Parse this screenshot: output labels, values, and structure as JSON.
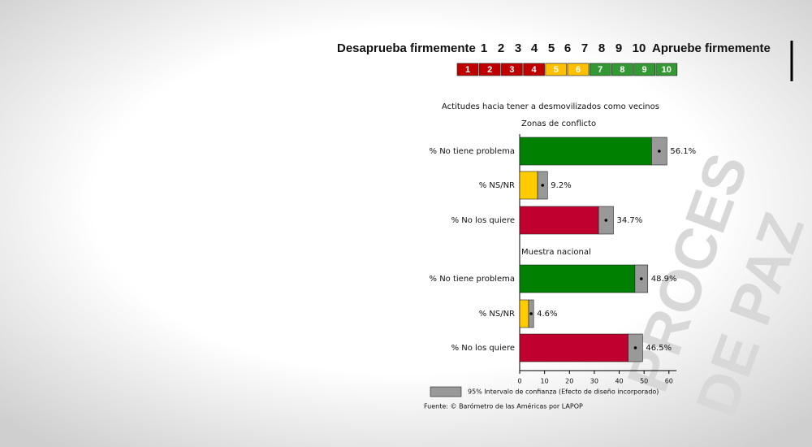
{
  "chart_data": {
    "type": "bar",
    "orientation": "horizontal",
    "title": "Actitudes hacia tener a desmovilizados como vecinos",
    "scale": {
      "left_label": "Desaprueba firmemente",
      "right_label": "Apruebe firmemente",
      "steps": [
        {
          "label": "1",
          "color": "#c00000"
        },
        {
          "label": "2",
          "color": "#c00000"
        },
        {
          "label": "3",
          "color": "#c00000"
        },
        {
          "label": "4",
          "color": "#c00000"
        },
        {
          "label": "5",
          "color": "#ffc000"
        },
        {
          "label": "6",
          "color": "#ffc000"
        },
        {
          "label": "7",
          "color": "#339933"
        },
        {
          "label": "8",
          "color": "#339933"
        },
        {
          "label": "9",
          "color": "#339933"
        },
        {
          "label": "10",
          "color": "#339933"
        }
      ]
    },
    "panels": [
      {
        "label": "Zonas de conflicto",
        "categories": [
          "% No tiene problema",
          "% NS/NR",
          "% No los quiere"
        ],
        "values": [
          56.1,
          9.2,
          34.7
        ],
        "value_labels": [
          "56.1%",
          "9.2%",
          "34.7%"
        ],
        "errors": [
          3.1,
          2.0,
          3.0
        ],
        "colors": [
          "#008000",
          "#ffcc00",
          "#c0002f"
        ]
      },
      {
        "label": "Muestra nacional",
        "categories": [
          "% No tiene problema",
          "% NS/NR",
          "% No los quiere"
        ],
        "values": [
          48.9,
          4.6,
          46.5
        ],
        "value_labels": [
          "48.9%",
          "4.6%",
          "46.5%"
        ],
        "errors": [
          2.6,
          1.0,
          2.9
        ],
        "colors": [
          "#008000",
          "#ffcc00",
          "#c0002f"
        ]
      }
    ],
    "error_color": "#999999",
    "xlim": [
      0,
      63
    ],
    "xticks": [
      0,
      10,
      20,
      30,
      40,
      50,
      60
    ],
    "legend": "95% Intervalo de confianza (Efecto de diseño incorporado)",
    "source": "Fuente: © Barómetro de las Américas por LAPOP"
  },
  "watermark": [
    "PROCES",
    "DE PAZ"
  ]
}
